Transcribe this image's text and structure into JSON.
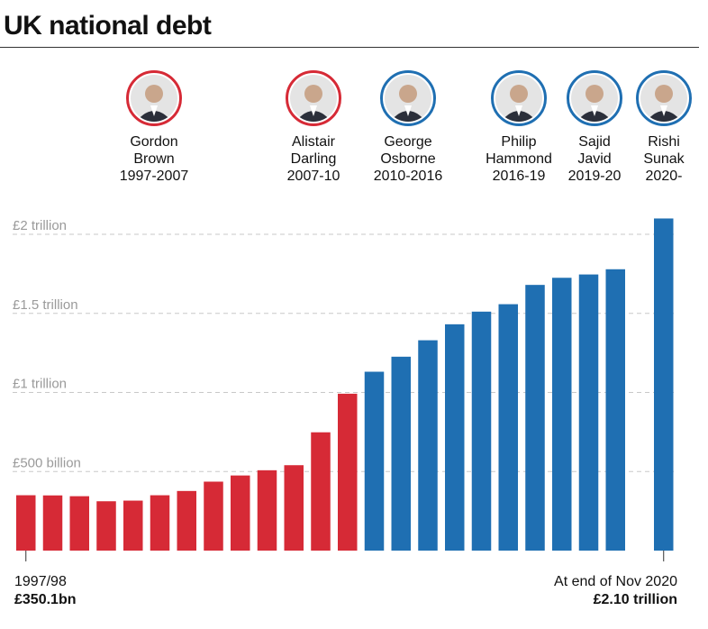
{
  "title": "UK national debt",
  "people": [
    {
      "name": "Gordon\nBrown",
      "term": "1997-2007",
      "party_color": "#d62a36",
      "icon": "portrait-icon"
    },
    {
      "name": "Alistair\nDarling",
      "term": "2007-10",
      "party_color": "#d62a36",
      "icon": "portrait-icon"
    },
    {
      "name": "George\nOsborne",
      "term": "2010-2016",
      "party_color": "#1f6fb2",
      "icon": "portrait-icon"
    },
    {
      "name": "Philip\nHammond",
      "term": "2016-19",
      "party_color": "#1f6fb2",
      "icon": "portrait-icon"
    },
    {
      "name": "Sajid\nJavid",
      "term": "2019-20",
      "party_color": "#1f6fb2",
      "icon": "portrait-icon"
    },
    {
      "name": "Rishi\nSunak",
      "term": "2020-",
      "party_color": "#1f6fb2",
      "icon": "portrait-icon"
    }
  ],
  "start_label": {
    "period": "1997/98",
    "value": "£350.1bn"
  },
  "end_label": {
    "period": "At end of Nov 2020",
    "value": "£2.10 trillion"
  },
  "chart_data": {
    "type": "bar",
    "title": "UK national debt",
    "xlabel": "",
    "ylabel": "",
    "ylim": [
      0,
      2100
    ],
    "y_unit": "£ billion",
    "grid": true,
    "y_ticks": [
      {
        "value": 500,
        "label": "£500 billion"
      },
      {
        "value": 1000,
        "label": "£1 trillion"
      },
      {
        "value": 1500,
        "label": "£1.5 trillion"
      },
      {
        "value": 2000,
        "label": "£2 trillion"
      }
    ],
    "colors": {
      "labour": "#d62a36",
      "conservative": "#1f6fb2",
      "grid": "#c8c8c8",
      "tick_text": "#9a9a9a"
    },
    "bars": [
      {
        "value": 350.1,
        "party": "labour"
      },
      {
        "value": 349,
        "party": "labour"
      },
      {
        "value": 344,
        "party": "labour"
      },
      {
        "value": 312,
        "party": "labour"
      },
      {
        "value": 316,
        "party": "labour"
      },
      {
        "value": 350,
        "party": "labour"
      },
      {
        "value": 377,
        "party": "labour"
      },
      {
        "value": 436,
        "party": "labour"
      },
      {
        "value": 475,
        "party": "labour"
      },
      {
        "value": 508,
        "party": "labour"
      },
      {
        "value": 540,
        "party": "labour"
      },
      {
        "value": 748,
        "party": "labour"
      },
      {
        "value": 992,
        "party": "labour"
      },
      {
        "value": 1131,
        "party": "conservative"
      },
      {
        "value": 1226,
        "party": "conservative"
      },
      {
        "value": 1330,
        "party": "conservative"
      },
      {
        "value": 1431,
        "party": "conservative"
      },
      {
        "value": 1511,
        "party": "conservative"
      },
      {
        "value": 1558,
        "party": "conservative"
      },
      {
        "value": 1680,
        "party": "conservative"
      },
      {
        "value": 1725,
        "party": "conservative"
      },
      {
        "value": 1746,
        "party": "conservative"
      },
      {
        "value": 1779,
        "party": "conservative"
      },
      {
        "value": 2100,
        "party": "conservative"
      }
    ]
  }
}
